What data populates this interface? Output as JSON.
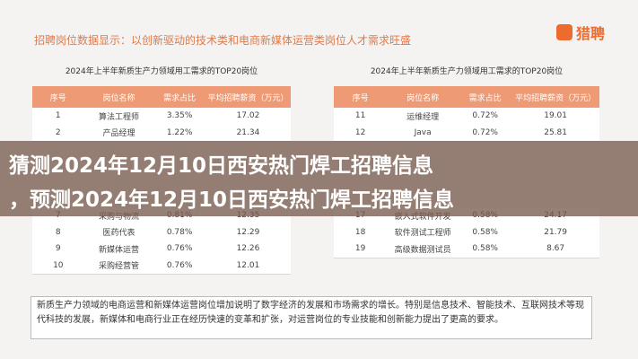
{
  "header": {
    "title": "招聘岗位数据显示：以创新驱动的技术类和电商新媒体运营类岗位人才需求旺盛",
    "logo": "猎聘"
  },
  "tables": [
    {
      "title": "2024年上半年新质生产力领域用工需求的TOP20岗位",
      "columns": [
        "序号",
        "岗位名称",
        "需求占比",
        "平均招聘薪资（万元）"
      ],
      "rows": [
        [
          "1",
          "算法工程师",
          "3.35%",
          "17.02"
        ],
        [
          "2",
          "产品经理",
          "1.22%",
          "21.34"
        ],
        [
          "7",
          "采购与物流",
          "0.81%",
          "12.35"
        ],
        [
          "8",
          "医药代表",
          "0.78%",
          "12.29"
        ],
        [
          "9",
          "新媒体运营",
          "0.76%",
          "12.26"
        ],
        [
          "10",
          "采购经营管",
          "0.76%",
          "12.01"
        ]
      ]
    },
    {
      "title": "2024年上半年新质生产力领域用工需求的TOP20岗位",
      "columns": [
        "序号",
        "岗位名称",
        "需求占比",
        "平均招聘薪资（万元）"
      ],
      "rows": [
        [
          "11",
          "运维经理",
          "0.72%",
          "19.01"
        ],
        [
          "12",
          "Java",
          "0.72%",
          "25.81"
        ],
        [
          "17",
          "嵌入式软件开发",
          "0.58%",
          "24.17"
        ],
        [
          "18",
          "软件测试工程师",
          "0.58%",
          "21.79"
        ],
        [
          "19",
          "高级数据测试员",
          "0.58%",
          "8.67"
        ]
      ]
    }
  ],
  "note": "新质生产力领域的电商运营和新媒体运营岗位增加说明了数字经济的发展和市场需求的增长。特别是信息技术、智能技术、互联网技术等现代科技的发展，新媒体和电商行业正在经历快速的变革和扩张，对运营岗位的专业技能和创新能力提出了更高的要求。",
  "overlay": {
    "line1": "猜测2024年12月10日西安热门焊工招聘信息",
    "line2": "，预测2024年12月10日西安热门焊工招聘信息"
  }
}
